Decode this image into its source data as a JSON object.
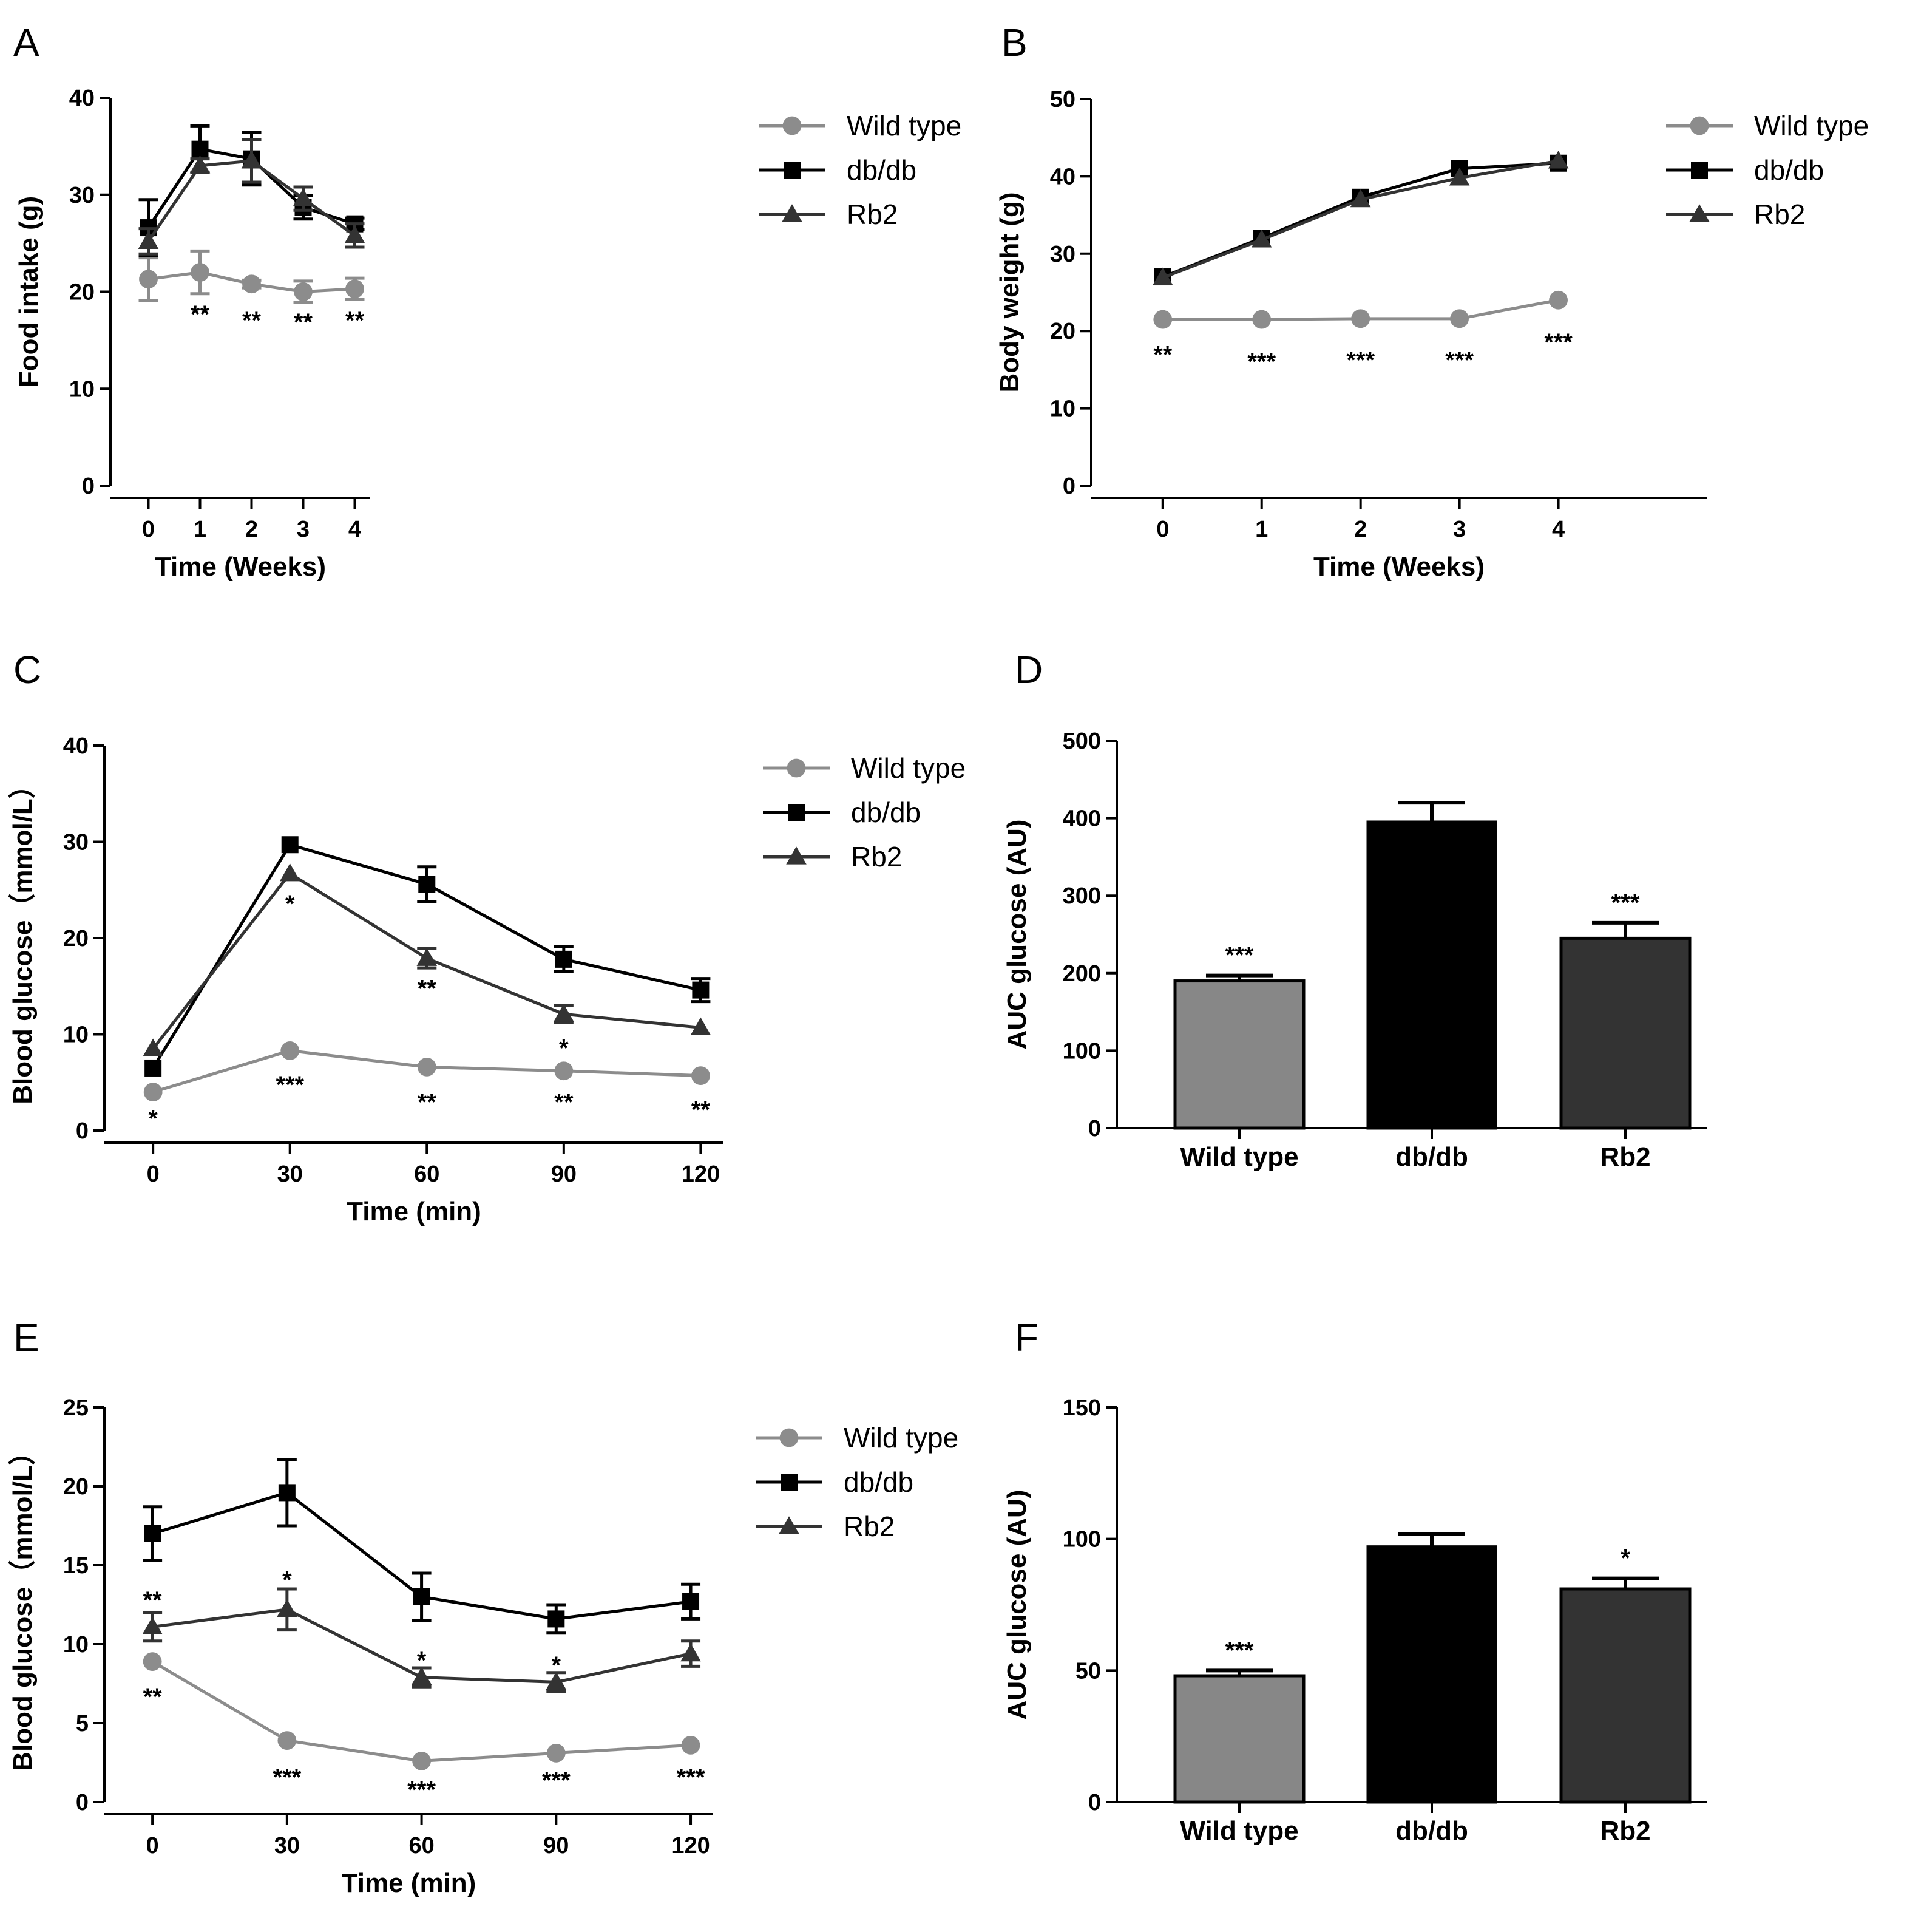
{
  "colors": {
    "Wild type": "#8c8c8c",
    "db/db": "#000000",
    "Rb2": "#333333",
    "bar_wild_type": "#878787",
    "bar_dbdb": "#000000",
    "bar_rb2": "#333333"
  },
  "chart_data": [
    {
      "panel": "A",
      "type": "line",
      "title": "",
      "xlabel": "Time (Weeks)",
      "ylabel": "Food intake (g)",
      "xlim": [
        -0.5,
        4.3
      ],
      "ylim": [
        0,
        40
      ],
      "xticks": [
        0,
        1,
        2,
        3,
        4
      ],
      "yticks": [
        0,
        10,
        20,
        30,
        40
      ],
      "legend_position": "right",
      "series": [
        {
          "name": "Wild type",
          "marker": "circle",
          "x": [
            0,
            1,
            2,
            3,
            4
          ],
          "y": [
            21.3,
            22.0,
            20.8,
            20.0,
            20.3
          ],
          "err": [
            2.2,
            2.2,
            0.4,
            1.1,
            1.1
          ]
        },
        {
          "name": "db/db",
          "marker": "square",
          "x": [
            0,
            1,
            2,
            3,
            4
          ],
          "y": [
            26.6,
            34.7,
            33.7,
            28.7,
            27.0
          ],
          "err": [
            2.9,
            2.4,
            2.7,
            1.2,
            0.6
          ]
        },
        {
          "name": "Rb2",
          "marker": "triangle",
          "x": [
            0,
            1,
            2,
            3,
            4
          ],
          "y": [
            25.2,
            33.0,
            33.5,
            29.6,
            25.8
          ],
          "err": [
            1.3,
            0.7,
            2.2,
            1.2,
            1.2
          ]
        }
      ],
      "annotations": [
        {
          "x": 1,
          "y": 17.7,
          "text": "**"
        },
        {
          "x": 2,
          "y": 17.1,
          "text": "**"
        },
        {
          "x": 3,
          "y": 16.9,
          "text": "**"
        },
        {
          "x": 4,
          "y": 17.1,
          "text": "**"
        }
      ]
    },
    {
      "panel": "B",
      "type": "line",
      "title": "",
      "xlabel": "Time (Weeks)",
      "ylabel": "Body weight (g)",
      "xlim": [
        -0.6,
        5.5
      ],
      "ylim": [
        0,
        50
      ],
      "xticks": [
        0,
        1,
        2,
        3,
        4
      ],
      "yticks": [
        0,
        10,
        20,
        30,
        40,
        50
      ],
      "legend_position": "right",
      "series": [
        {
          "name": "Wild type",
          "marker": "circle",
          "x": [
            0,
            1,
            2,
            3,
            4
          ],
          "y": [
            21.5,
            21.5,
            21.6,
            21.6,
            24.0
          ],
          "err": [
            0,
            0,
            0,
            0,
            0
          ]
        },
        {
          "name": "db/db",
          "marker": "square",
          "x": [
            0,
            1,
            2,
            3,
            4
          ],
          "y": [
            27.0,
            32.0,
            37.3,
            41.0,
            41.7
          ],
          "err": [
            0,
            0,
            0,
            0,
            0
          ]
        },
        {
          "name": "Rb2",
          "marker": "triangle",
          "x": [
            0,
            1,
            2,
            3,
            4
          ],
          "y": [
            26.9,
            31.8,
            37.0,
            39.8,
            42.0
          ],
          "err": [
            0,
            0,
            0,
            0,
            0
          ]
        }
      ],
      "annotations": [
        {
          "x": 0,
          "y": 17.0,
          "text": "**"
        },
        {
          "x": 1,
          "y": 16.1,
          "text": "***"
        },
        {
          "x": 2,
          "y": 16.3,
          "text": "***"
        },
        {
          "x": 3,
          "y": 16.3,
          "text": "***"
        },
        {
          "x": 4,
          "y": 18.6,
          "text": "***"
        }
      ]
    },
    {
      "panel": "C",
      "type": "line",
      "title": "",
      "xlabel": "Time (min)",
      "ylabel": "Blood glucose（mmol/L）",
      "xlim": [
        -8,
        125
      ],
      "ylim": [
        0,
        40
      ],
      "xticks": [
        0,
        30,
        60,
        90,
        120
      ],
      "yticks": [
        0,
        10,
        20,
        30,
        40
      ],
      "legend_position": "right",
      "series": [
        {
          "name": "Wild type",
          "marker": "circle",
          "x": [
            0,
            30,
            60,
            90,
            120
          ],
          "y": [
            4.0,
            8.3,
            6.6,
            6.2,
            5.7
          ],
          "err": [
            0,
            0,
            0,
            0,
            0
          ]
        },
        {
          "name": "db/db",
          "marker": "square",
          "x": [
            0,
            30,
            60,
            90,
            120
          ],
          "y": [
            6.5,
            29.7,
            25.6,
            17.8,
            14.6
          ],
          "err": [
            0,
            0,
            1.8,
            1.3,
            1.2
          ]
        },
        {
          "name": "Rb2",
          "marker": "triangle",
          "x": [
            0,
            30,
            60,
            90,
            120
          ],
          "y": [
            8.5,
            26.7,
            17.9,
            12.1,
            10.7
          ],
          "err": [
            0,
            0,
            1.0,
            0.9,
            0
          ]
        }
      ],
      "annotations": [
        {
          "x": 0,
          "y": 1.3,
          "text": "*"
        },
        {
          "x": 30,
          "y": 23.6,
          "text": "*"
        },
        {
          "x": 90,
          "y": 8.6,
          "text": "*"
        },
        {
          "x": 30,
          "y": 4.8,
          "text": "***"
        },
        {
          "x": 60,
          "y": 14.8,
          "text": "**"
        },
        {
          "x": 60,
          "y": 3.0,
          "text": "**"
        },
        {
          "x": 90,
          "y": 3.0,
          "text": "**"
        },
        {
          "x": 120,
          "y": 2.2,
          "text": "**"
        }
      ]
    },
    {
      "panel": "D",
      "type": "bar",
      "title": "",
      "xlabel": "",
      "ylabel": "AUC glucose (AU)",
      "ylim": [
        0,
        500
      ],
      "yticks": [
        0,
        100,
        200,
        300,
        400,
        500
      ],
      "categories": [
        "Wild type",
        "db/db",
        "Rb2"
      ],
      "values": [
        190,
        395,
        245
      ],
      "err": [
        7,
        25,
        20
      ],
      "annotations": [
        {
          "category": "Wild type",
          "text": "***"
        },
        {
          "category": "Rb2",
          "text": "***"
        }
      ]
    },
    {
      "panel": "E",
      "type": "line",
      "title": "",
      "xlabel": "Time (min)",
      "ylabel": "Blood glucose（mmol/L）",
      "xlim": [
        -8,
        125
      ],
      "ylim": [
        0,
        25
      ],
      "xticks": [
        0,
        30,
        60,
        90,
        120
      ],
      "yticks": [
        0,
        5,
        10,
        15,
        20,
        25
      ],
      "legend_position": "right",
      "series": [
        {
          "name": "Wild type",
          "marker": "circle",
          "x": [
            0,
            30,
            60,
            90,
            120
          ],
          "y": [
            8.9,
            3.9,
            2.6,
            3.1,
            3.6
          ],
          "err": [
            0,
            0,
            0,
            0,
            0
          ]
        },
        {
          "name": "db/db",
          "marker": "square",
          "x": [
            0,
            30,
            60,
            90,
            120
          ],
          "y": [
            17.0,
            19.6,
            13.0,
            11.6,
            12.7
          ],
          "err": [
            1.7,
            2.1,
            1.5,
            0.9,
            1.1
          ]
        },
        {
          "name": "Rb2",
          "marker": "triangle",
          "x": [
            0,
            30,
            60,
            90,
            120
          ],
          "y": [
            11.1,
            12.2,
            7.9,
            7.6,
            9.4
          ],
          "err": [
            0.9,
            1.3,
            0.6,
            0.6,
            0.8
          ]
        }
      ],
      "annotations": [
        {
          "x": 0,
          "y": 12.8,
          "text": "**"
        },
        {
          "x": 0,
          "y": 6.7,
          "text": "**"
        },
        {
          "x": 30,
          "y": 14.1,
          "text": "*"
        },
        {
          "x": 60,
          "y": 9.0,
          "text": "*"
        },
        {
          "x": 90,
          "y": 8.7,
          "text": "*"
        },
        {
          "x": 30,
          "y": 1.6,
          "text": "***"
        },
        {
          "x": 60,
          "y": 0.8,
          "text": "***"
        },
        {
          "x": 90,
          "y": 1.4,
          "text": "***"
        },
        {
          "x": 120,
          "y": 1.6,
          "text": "***"
        }
      ]
    },
    {
      "panel": "F",
      "type": "bar",
      "title": "",
      "xlabel": "",
      "ylabel": "AUC glucose (AU)",
      "ylim": [
        0,
        150
      ],
      "yticks": [
        0,
        50,
        100,
        150
      ],
      "categories": [
        "Wild type",
        "db/db",
        "Rb2"
      ],
      "values": [
        48,
        97,
        81
      ],
      "err": [
        2,
        5,
        4
      ],
      "annotations": [
        {
          "category": "Wild type",
          "text": "***"
        },
        {
          "category": "Rb2",
          "text": "*"
        }
      ]
    }
  ]
}
